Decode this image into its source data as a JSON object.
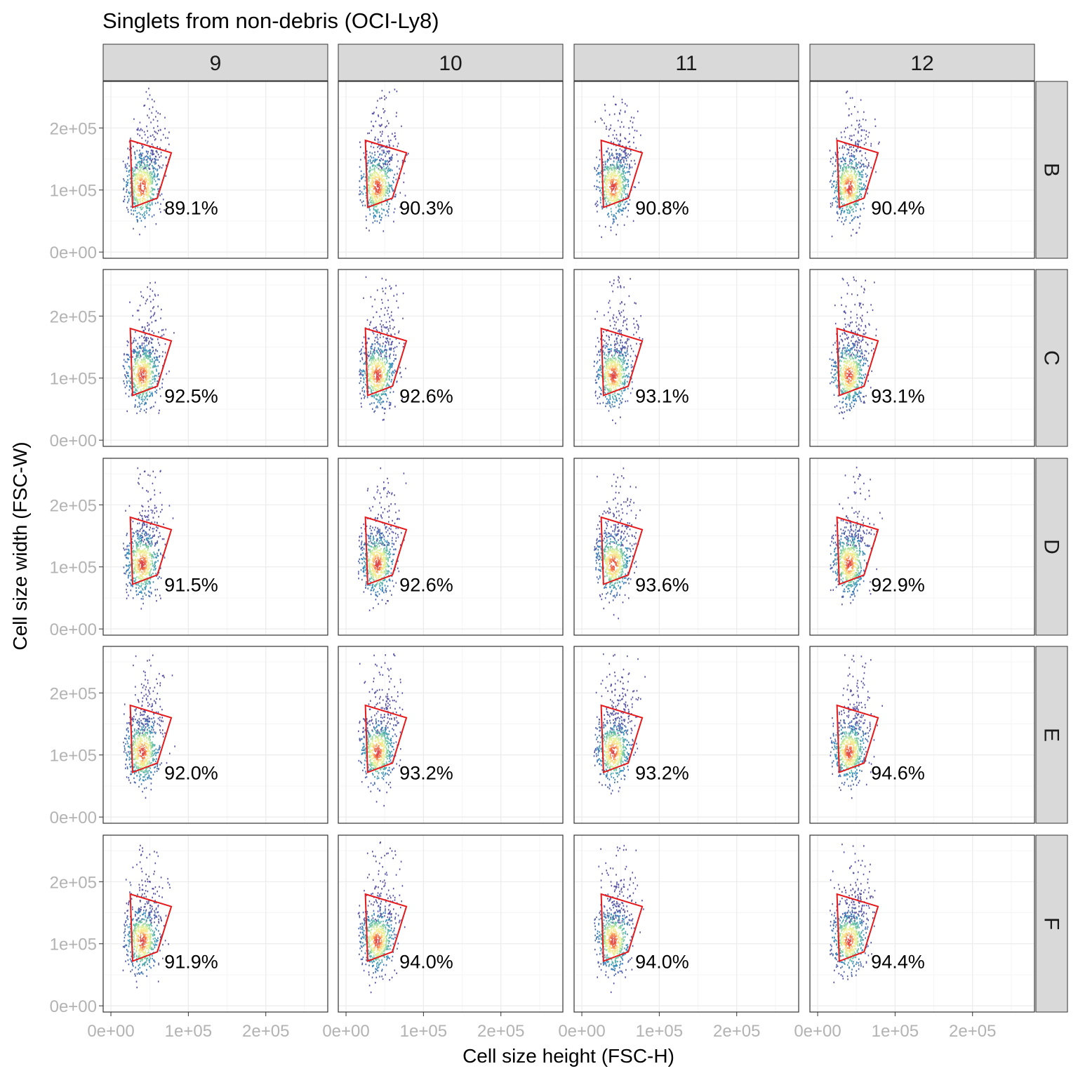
{
  "chart_data": {
    "type": "scatter",
    "title": "Singlets from non-debris (OCI-Ly8)",
    "xlabel": "Cell size height (FSC-H)",
    "ylabel": "Cell size width (FSC-W)",
    "columns": [
      "9",
      "10",
      "11",
      "12"
    ],
    "rows": [
      "B",
      "C",
      "D",
      "E",
      "F"
    ],
    "xlim": [
      -10000,
      280000
    ],
    "ylim": [
      -10000,
      275000
    ],
    "x_ticks": [
      0,
      100000,
      200000
    ],
    "x_tick_labels": [
      "0e+00",
      "1e+05",
      "2e+05"
    ],
    "y_ticks": [
      0,
      100000,
      200000
    ],
    "y_tick_labels": [
      "0e+00",
      "1e+05",
      "2e+05"
    ],
    "gate_polygon": [
      [
        25000,
        180000
      ],
      [
        78000,
        160000
      ],
      [
        60000,
        87000
      ],
      [
        28000,
        72000
      ]
    ],
    "cluster_center": [
      40000,
      105000
    ],
    "colors": {
      "gate": "#e41a1c",
      "density_low": "#5e4fa2",
      "density_mid": "#66c2a5",
      "density_high": "#fee08b",
      "density_peak": "#d53e4f",
      "strip_fill": "#d9d9d9",
      "grid_major": "#ebebeb",
      "grid_minor": "#f5f5f5"
    },
    "panels": [
      {
        "row": "B",
        "col": "9",
        "percent": "89.1%"
      },
      {
        "row": "B",
        "col": "10",
        "percent": "90.3%"
      },
      {
        "row": "B",
        "col": "11",
        "percent": "90.8%"
      },
      {
        "row": "B",
        "col": "12",
        "percent": "90.4%"
      },
      {
        "row": "C",
        "col": "9",
        "percent": "92.5%"
      },
      {
        "row": "C",
        "col": "10",
        "percent": "92.6%"
      },
      {
        "row": "C",
        "col": "11",
        "percent": "93.1%"
      },
      {
        "row": "C",
        "col": "12",
        "percent": "93.1%"
      },
      {
        "row": "D",
        "col": "9",
        "percent": "91.5%"
      },
      {
        "row": "D",
        "col": "10",
        "percent": "92.6%"
      },
      {
        "row": "D",
        "col": "11",
        "percent": "93.6%"
      },
      {
        "row": "D",
        "col": "12",
        "percent": "92.9%"
      },
      {
        "row": "E",
        "col": "9",
        "percent": "92.0%"
      },
      {
        "row": "E",
        "col": "10",
        "percent": "93.2%"
      },
      {
        "row": "E",
        "col": "11",
        "percent": "93.2%"
      },
      {
        "row": "E",
        "col": "12",
        "percent": "94.6%"
      },
      {
        "row": "F",
        "col": "9",
        "percent": "91.9%"
      },
      {
        "row": "F",
        "col": "10",
        "percent": "94.0%"
      },
      {
        "row": "F",
        "col": "11",
        "percent": "94.0%"
      },
      {
        "row": "F",
        "col": "12",
        "percent": "94.4%"
      }
    ]
  }
}
